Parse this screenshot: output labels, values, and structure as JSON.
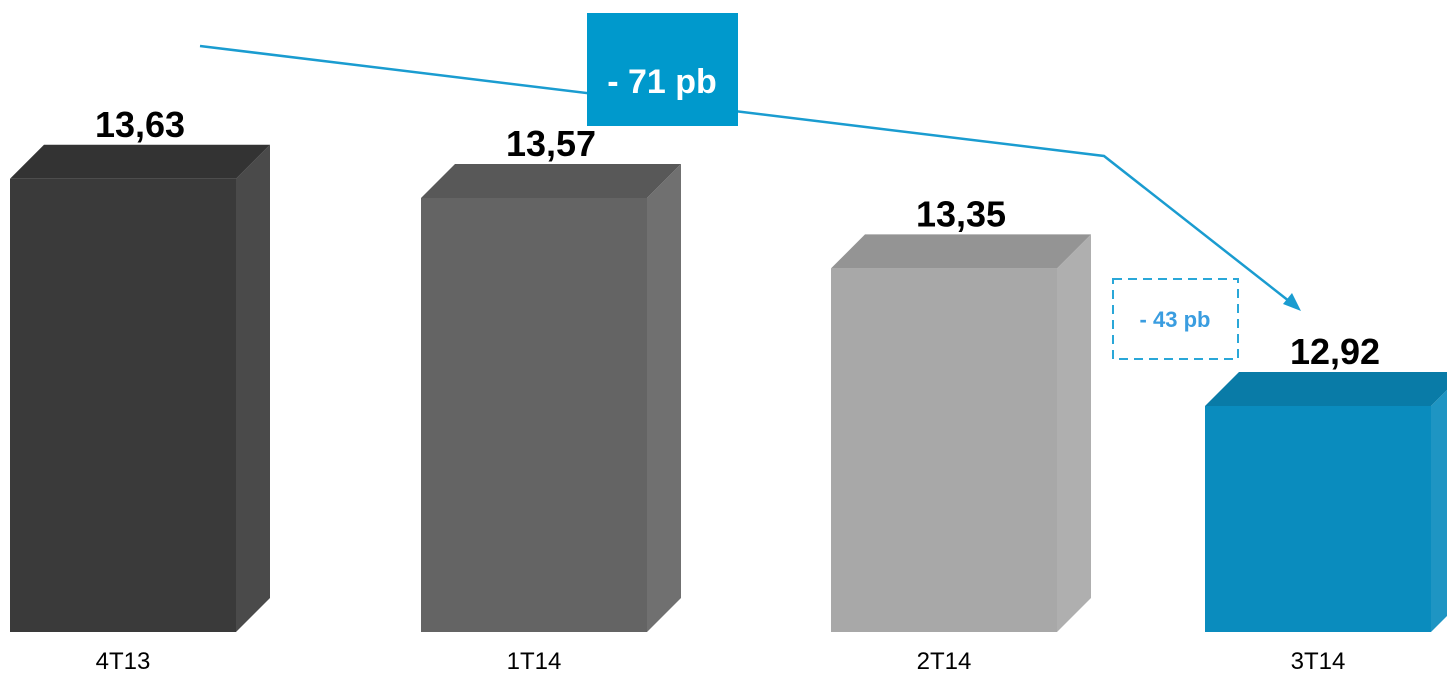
{
  "chart_data": {
    "type": "bar",
    "categories": [
      "4T13",
      "1T14",
      "2T14",
      "3T14"
    ],
    "values": [
      13.63,
      13.57,
      13.35,
      12.92
    ],
    "value_labels": [
      "13,63",
      "13,57",
      "13,35",
      "12,92"
    ],
    "style": "3d",
    "colors": [
      "#3a3a3a",
      "#646464",
      "#a8a8a8",
      "#0a8cbe"
    ],
    "grid": false,
    "annotations": {
      "total_change": "- 71 pb",
      "quarter_change": "- 43 pb"
    },
    "annotation_colors": {
      "total_box": "#0099cc",
      "quarter_box_border": "#2aa7d8",
      "quarter_text": "#3a9de0",
      "trend_line": "#1a9cd0"
    }
  }
}
